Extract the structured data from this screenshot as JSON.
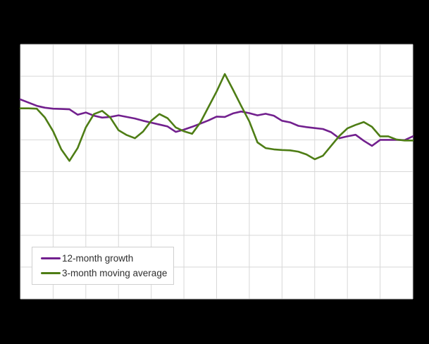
{
  "window": {
    "background": "#000000"
  },
  "chart": {
    "plot_background": "#ffffff",
    "gridline_color": "#d8d8d8",
    "x_gridline_columns": 12,
    "y_gridline_rows": 8,
    "series_stroke_width": 2.6
  },
  "chart_data": {
    "type": "line",
    "title": "",
    "xlabel": "",
    "ylabel": "",
    "x_axis": "49 consecutive monthly observations (no tick labels visible in image)",
    "y_unit": "gridline units — y-axis tick labels not visible in image; 1 unit = 1 horizontal gridline, 0 = bottom plot edge",
    "ylim": [
      0,
      8
    ],
    "grid": true,
    "legend_position": "bottom-left inside plot area",
    "n_points": 49,
    "series": [
      {
        "name": "12-month growth",
        "color": "#72208E",
        "values": [
          6.27,
          6.17,
          6.07,
          6.01,
          5.98,
          5.97,
          5.96,
          5.79,
          5.86,
          5.76,
          5.7,
          5.72,
          5.77,
          5.72,
          5.67,
          5.6,
          5.54,
          5.48,
          5.42,
          5.25,
          5.32,
          5.41,
          5.51,
          5.61,
          5.73,
          5.72,
          5.83,
          5.89,
          5.84,
          5.77,
          5.82,
          5.76,
          5.6,
          5.55,
          5.44,
          5.4,
          5.37,
          5.34,
          5.24,
          5.05,
          5.11,
          5.16,
          4.97,
          4.81,
          5.0,
          5.0,
          5.0,
          4.99,
          5.11
        ]
      },
      {
        "name": "3-month moving average",
        "color": "#4E7D15",
        "values": [
          5.99,
          5.99,
          5.98,
          5.7,
          5.27,
          4.7,
          4.34,
          4.74,
          5.39,
          5.81,
          5.91,
          5.7,
          5.3,
          5.15,
          5.05,
          5.26,
          5.6,
          5.81,
          5.68,
          5.39,
          5.27,
          5.19,
          5.54,
          6.03,
          6.52,
          7.07,
          6.58,
          6.07,
          5.58,
          4.92,
          4.74,
          4.7,
          4.68,
          4.67,
          4.63,
          4.54,
          4.39,
          4.5,
          4.81,
          5.12,
          5.36,
          5.47,
          5.56,
          5.41,
          5.11,
          5.11,
          5.01,
          4.98,
          4.98
        ]
      }
    ]
  }
}
